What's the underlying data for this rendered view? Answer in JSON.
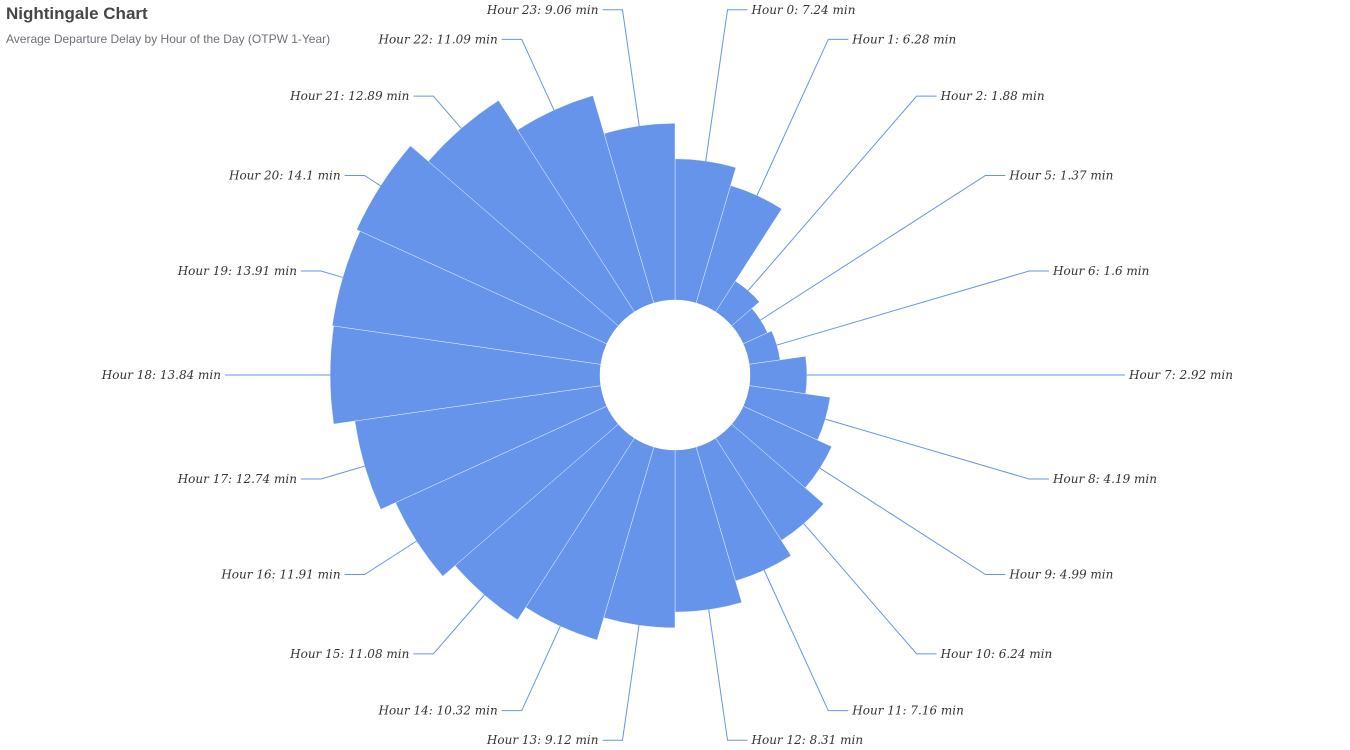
{
  "chart_data": {
    "type": "pie",
    "variant": "nightingale-rose",
    "title": "Nightingale Chart",
    "subtitle": "Average Departure Delay by Hour of the Day (OTPW 1-Year)",
    "unit": "min",
    "label_prefix": "Hour",
    "color": "#6694eb",
    "line_color": "#6694eb",
    "categories": [
      0,
      1,
      2,
      5,
      6,
      7,
      8,
      9,
      10,
      11,
      12,
      13,
      14,
      15,
      16,
      17,
      18,
      19,
      20,
      21,
      22,
      23
    ],
    "values": [
      7.24,
      6.28,
      1.88,
      1.37,
      1.6,
      2.92,
      4.19,
      4.99,
      6.24,
      7.16,
      8.31,
      9.12,
      10.32,
      11.08,
      11.91,
      12.74,
      13.84,
      13.91,
      14.1,
      12.89,
      11.09,
      9.06
    ]
  }
}
